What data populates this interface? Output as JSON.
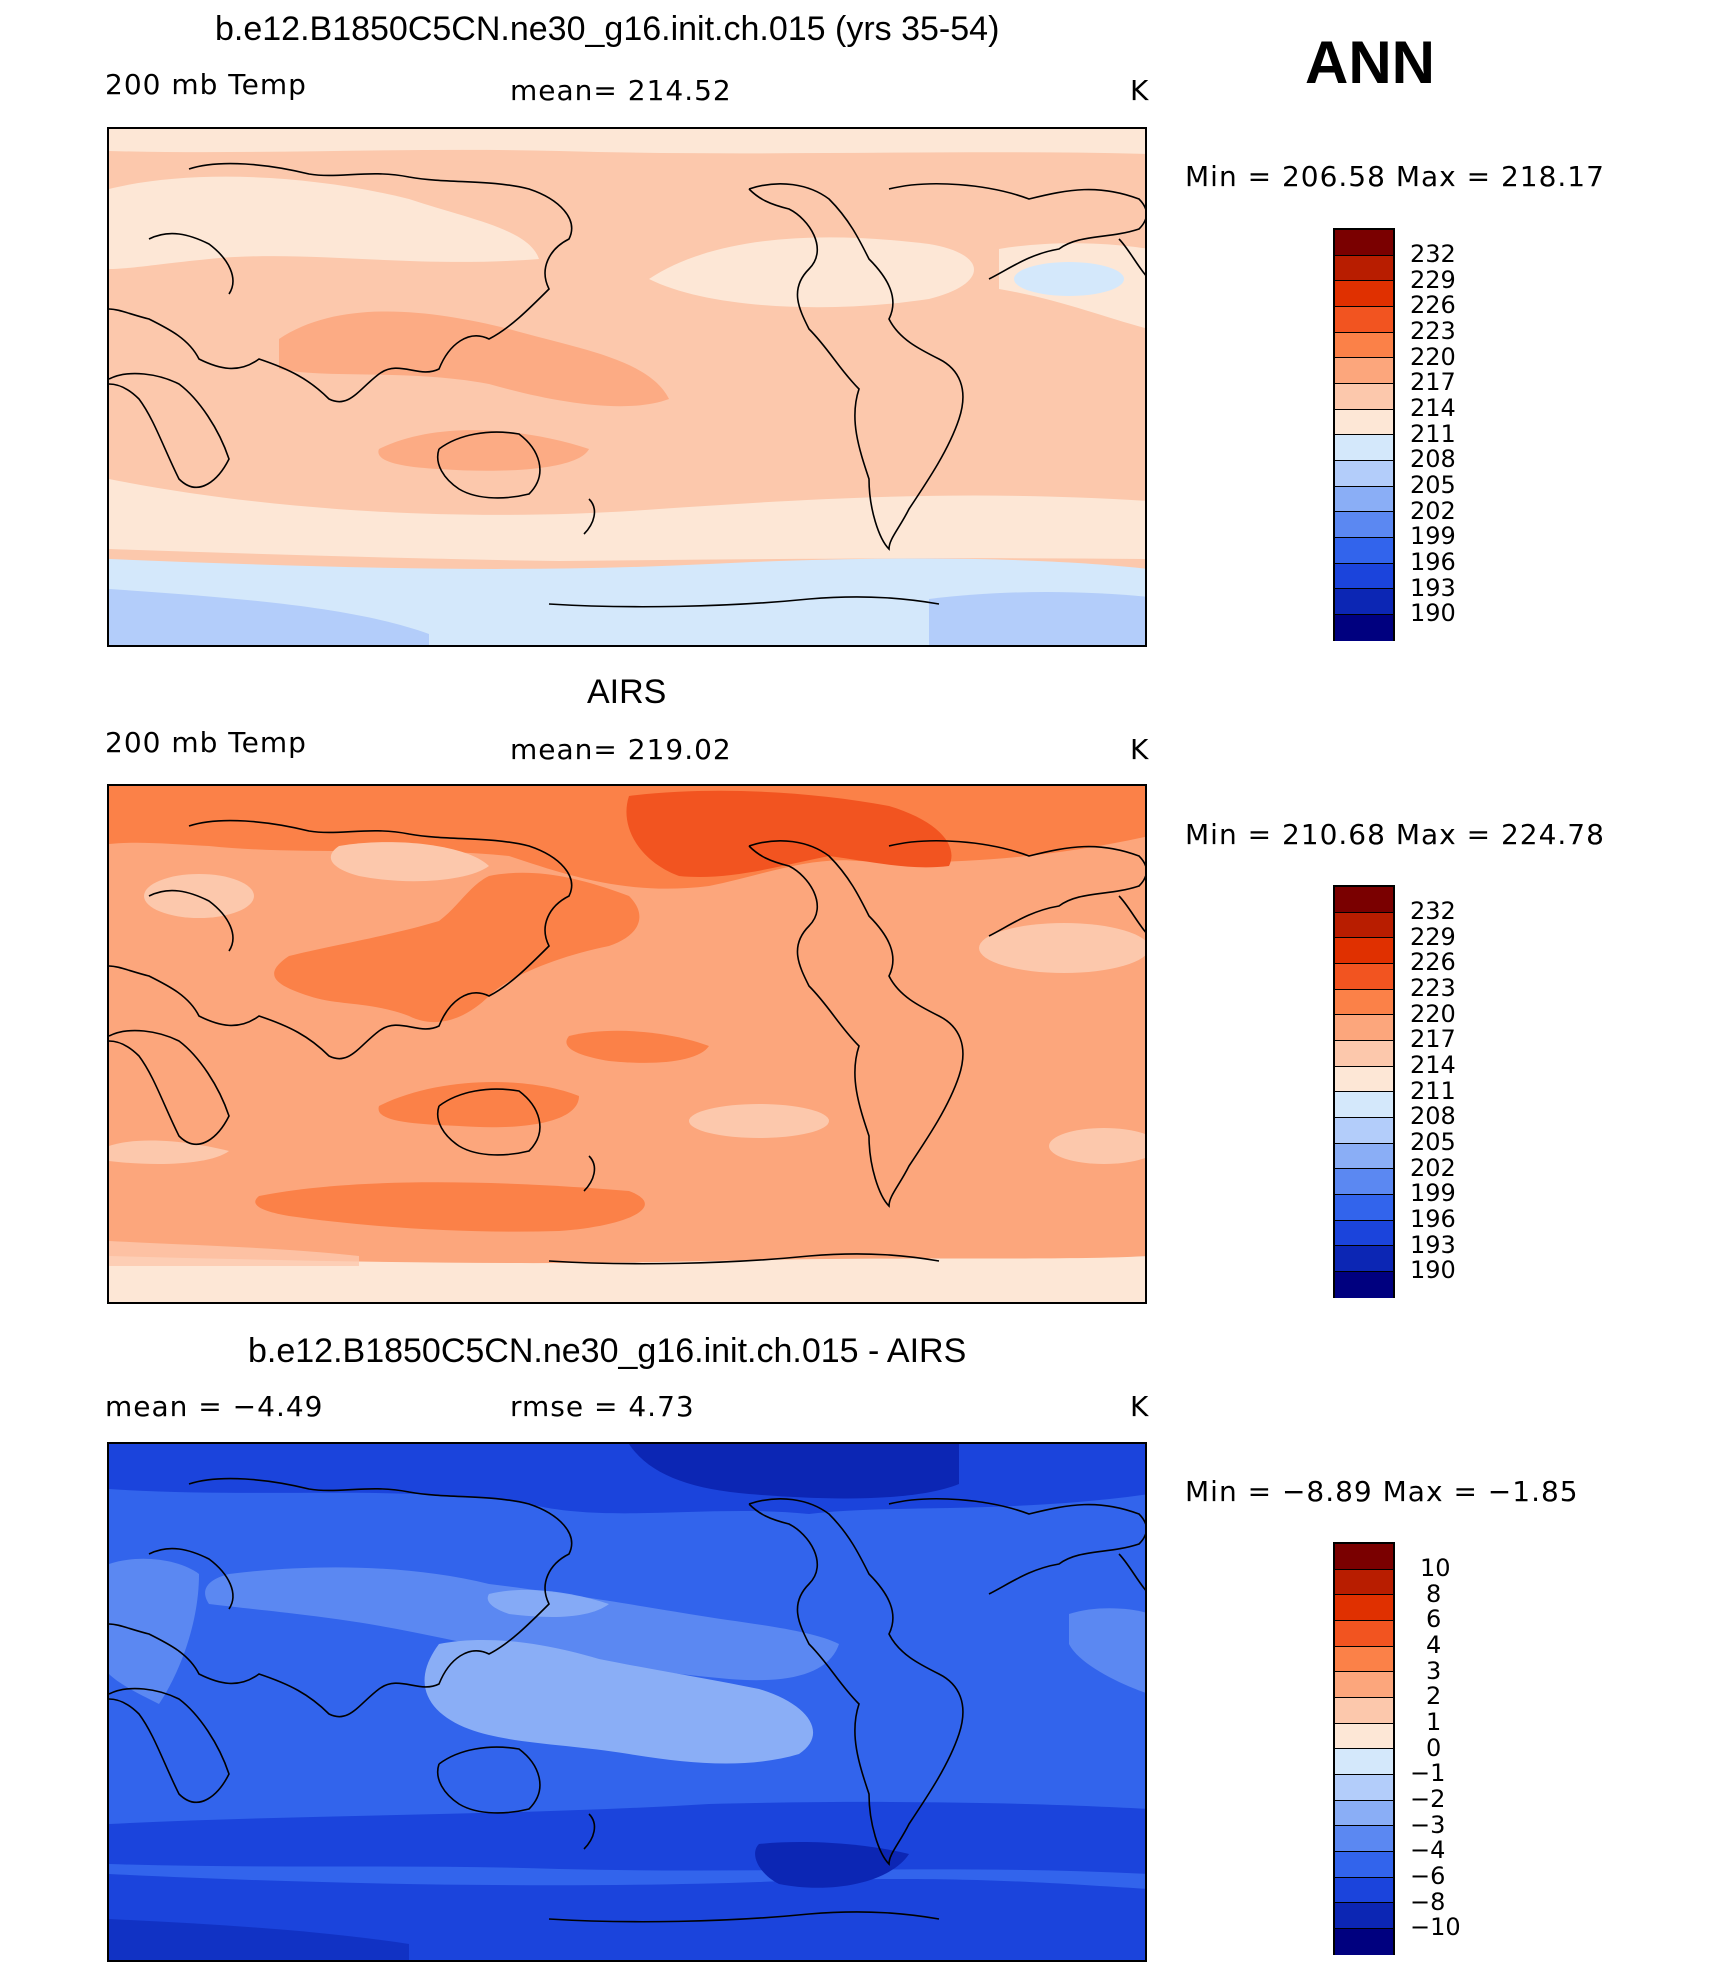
{
  "season": "ANN",
  "panels": [
    {
      "title": "b.e12.B1850C5CN.ne30_g16.init.ch.015 (yrs 35-54)",
      "left_label": "200 mb Temp",
      "center_label": "mean=  214.52",
      "units": "K",
      "minmax": "Min  =  206.58  Max  =  218.17",
      "colorbar_labels": [
        "232",
        "229",
        "226",
        "223",
        "220",
        "217",
        "214",
        "211",
        "208",
        "205",
        "202",
        "199",
        "196",
        "193",
        "190"
      ]
    },
    {
      "title": "AIRS",
      "left_label": "200 mb Temp",
      "center_label": "mean=  219.02",
      "units": "K",
      "minmax": "Min  =  210.68  Max  =  224.78",
      "colorbar_labels": [
        "232",
        "229",
        "226",
        "223",
        "220",
        "217",
        "214",
        "211",
        "208",
        "205",
        "202",
        "199",
        "196",
        "193",
        "190"
      ]
    },
    {
      "title": "b.e12.B1850C5CN.ne30_g16.init.ch.015 - AIRS",
      "left_label": "mean  =    −4.49",
      "center_label": "rmse  =     4.73",
      "units": "K",
      "minmax": "Min  =    −8.89  Max  =    −1.85",
      "colorbar_labels": [
        "10",
        "8",
        "6",
        "4",
        "3",
        "2",
        "1",
        "0",
        "−1",
        "−2",
        "−3",
        "−4",
        "−6",
        "−8",
        "−10"
      ]
    }
  ],
  "colors": {
    "colorbar": [
      "#7a0000",
      "#b81d00",
      "#e03000",
      "#f25420",
      "#fb8148",
      "#fca67c",
      "#fcc8ac",
      "#fde7d6",
      "#d4e8fb",
      "#b3cdfa",
      "#8aaef6",
      "#5b88f2",
      "#3264ec",
      "#1b44dc",
      "#0c26b4",
      "#00007f"
    ]
  }
}
